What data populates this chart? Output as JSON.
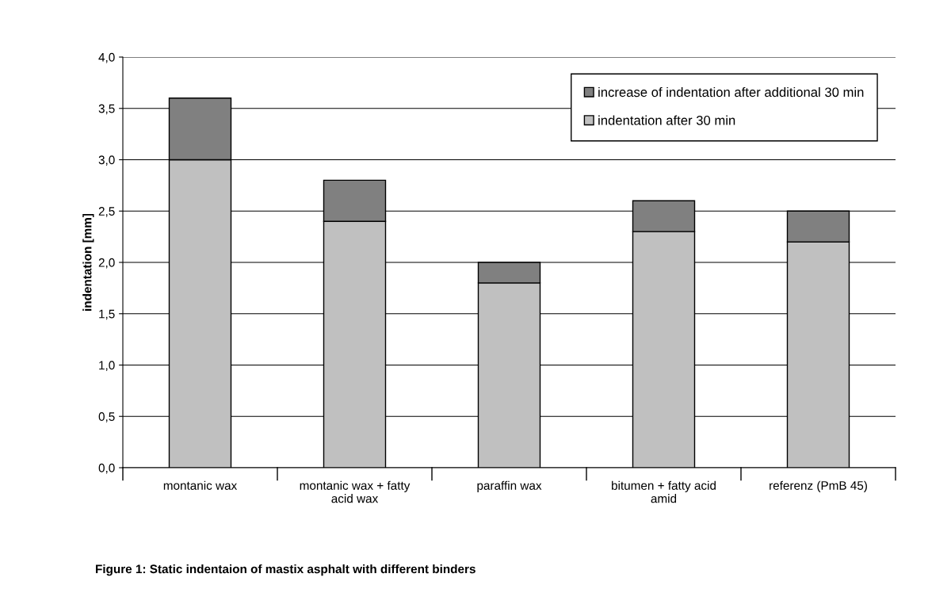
{
  "chart_data": {
    "type": "bar",
    "stacked": true,
    "categories": [
      "montanic wax",
      "montanic wax + fatty acid wax",
      "paraffin wax",
      "bitumen + fatty acid amid",
      "referenz (PmB 45)"
    ],
    "series": [
      {
        "name": "indentation after 30 min",
        "color": "#c0c0c0",
        "values": [
          3.0,
          2.4,
          1.8,
          2.3,
          2.2
        ]
      },
      {
        "name": "increase of indentation after additional 30 min",
        "color": "#808080",
        "values": [
          0.6,
          0.4,
          0.2,
          0.3,
          0.3
        ]
      }
    ],
    "ylabel": "indentation [mm]",
    "ylim": [
      0,
      4
    ],
    "yticks": [
      {
        "value": 0,
        "label": "0,0"
      },
      {
        "value": 0.5,
        "label": "0,5"
      },
      {
        "value": 1,
        "label": "1,0"
      },
      {
        "value": 1.5,
        "label": "1,5"
      },
      {
        "value": 2,
        "label": "2,0"
      },
      {
        "value": 2.5,
        "label": "2,5"
      },
      {
        "value": 3,
        "label": "3,0"
      },
      {
        "value": 3.5,
        "label": "3,5"
      },
      {
        "value": 4,
        "label": "4,0"
      }
    ],
    "grid": "y",
    "legend": "top right",
    "annotations": [
      "Figure 1: Static indentaion of mastix asphalt with different binders"
    ]
  }
}
